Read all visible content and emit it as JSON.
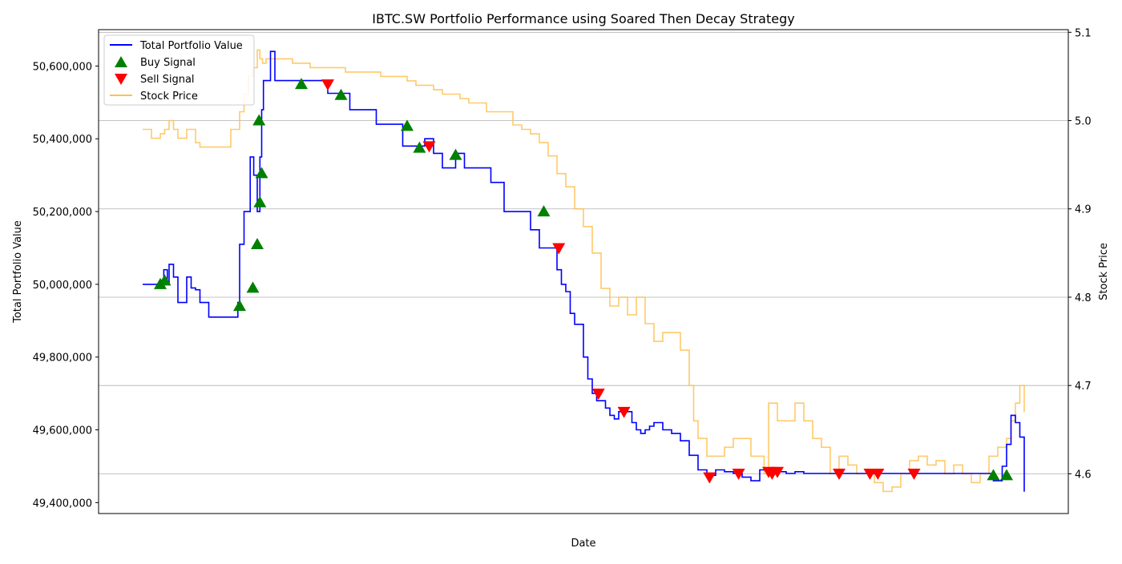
{
  "chart_data": {
    "type": "line",
    "title": "IBTC.SW Portfolio Performance using Soared Then Decay Strategy",
    "xlabel": "Date",
    "ylabel_left": "Total Portfolio Value",
    "ylabel_right": "Stock Price",
    "ylim_left": [
      49370000,
      50700000
    ],
    "ylim_right": [
      4.555,
      5.103
    ],
    "xlim": [
      -0.05,
      1.05
    ],
    "left_ticks": [
      49400000,
      49600000,
      49800000,
      50000000,
      50200000,
      50400000,
      50600000
    ],
    "left_tick_labels": [
      "49,400,000",
      "49,600,000",
      "49,800,000",
      "50,000,000",
      "50,200,000",
      "50,400,000",
      "50,600,000"
    ],
    "right_ticks": [
      4.6,
      4.7,
      4.8,
      4.9,
      5.0,
      5.1
    ],
    "right_tick_labels": [
      "4.6",
      "4.7",
      "4.8",
      "4.9",
      "5.0",
      "5.1"
    ],
    "grid": "horizontal",
    "legend_position": "top-left",
    "colors": {
      "portfolio": "#0000ff",
      "buy": "#008000",
      "sell": "#ff0000",
      "stock": "#ffbf50"
    },
    "series": [
      {
        "name": "Total Portfolio Value",
        "axis": "left",
        "x": [
          0.0,
          0.02,
          0.024,
          0.028,
          0.03,
          0.035,
          0.04,
          0.045,
          0.05,
          0.055,
          0.06,
          0.065,
          0.07,
          0.075,
          0.08,
          0.085,
          0.09,
          0.1,
          0.108,
          0.11,
          0.115,
          0.122,
          0.126,
          0.13,
          0.133,
          0.135,
          0.137,
          0.14,
          0.145,
          0.15,
          0.155,
          0.165,
          0.18,
          0.195,
          0.205,
          0.21,
          0.22,
          0.235,
          0.245,
          0.255,
          0.265,
          0.275,
          0.285,
          0.295,
          0.3,
          0.31,
          0.32,
          0.33,
          0.34,
          0.345,
          0.355,
          0.365,
          0.375,
          0.385,
          0.395,
          0.41,
          0.425,
          0.44,
          0.45,
          0.46,
          0.47,
          0.475,
          0.48,
          0.485,
          0.49,
          0.495,
          0.5,
          0.505,
          0.51,
          0.515,
          0.52,
          0.525,
          0.53,
          0.535,
          0.54,
          0.545,
          0.55,
          0.555,
          0.56,
          0.565,
          0.57,
          0.575,
          0.58,
          0.59,
          0.6,
          0.61,
          0.62,
          0.63,
          0.64,
          0.645,
          0.65,
          0.66,
          0.67,
          0.68,
          0.69,
          0.7,
          0.71,
          0.72,
          0.73,
          0.74,
          0.75,
          0.76,
          0.77,
          0.8,
          0.82,
          0.85,
          0.88,
          0.9,
          0.92,
          0.94,
          0.96,
          0.965,
          0.97,
          0.975,
          0.98,
          0.985,
          0.99,
          0.995,
          1.0
        ],
        "values": [
          50000000,
          50000000,
          50040000,
          50000000,
          50055000,
          50020000,
          49950000,
          49950000,
          50020000,
          49990000,
          49985000,
          49950000,
          49950000,
          49910000,
          49910000,
          49910000,
          49910000,
          49910000,
          49950000,
          50110000,
          50200000,
          50350000,
          50300000,
          50200000,
          50350000,
          50480000,
          50560000,
          50560000,
          50640000,
          50560000,
          50560000,
          50560000,
          50560000,
          50560000,
          50560000,
          50525000,
          50525000,
          50480000,
          50480000,
          50480000,
          50440000,
          50440000,
          50440000,
          50380000,
          50380000,
          50380000,
          50400000,
          50360000,
          50320000,
          50320000,
          50360000,
          50320000,
          50320000,
          50320000,
          50280000,
          50200000,
          50200000,
          50150000,
          50100000,
          50100000,
          50040000,
          50000000,
          49980000,
          49920000,
          49890000,
          49890000,
          49800000,
          49740000,
          49700000,
          49680000,
          49680000,
          49660000,
          49640000,
          49630000,
          49650000,
          49660000,
          49650000,
          49620000,
          49600000,
          49590000,
          49600000,
          49610000,
          49620000,
          49600000,
          49590000,
          49570000,
          49530000,
          49490000,
          49480000,
          49475000,
          49490000,
          49485000,
          49480000,
          49470000,
          49460000,
          49490000,
          49490000,
          49485000,
          49480000,
          49485000,
          49480000,
          49480000,
          49480000,
          49480000,
          49480000,
          49480000,
          49480000,
          49480000,
          49480000,
          49480000,
          49480000,
          49460000,
          49460000,
          49500000,
          49560000,
          49640000,
          49620000,
          49580000,
          49430000
        ]
      },
      {
        "name": "Stock Price",
        "axis": "right",
        "x": [
          0.0,
          0.01,
          0.02,
          0.025,
          0.03,
          0.035,
          0.04,
          0.05,
          0.06,
          0.065,
          0.07,
          0.075,
          0.08,
          0.09,
          0.1,
          0.11,
          0.115,
          0.12,
          0.125,
          0.13,
          0.133,
          0.136,
          0.14,
          0.145,
          0.15,
          0.16,
          0.17,
          0.18,
          0.19,
          0.2,
          0.21,
          0.22,
          0.23,
          0.25,
          0.27,
          0.29,
          0.3,
          0.31,
          0.32,
          0.33,
          0.34,
          0.35,
          0.36,
          0.37,
          0.38,
          0.39,
          0.4,
          0.41,
          0.42,
          0.43,
          0.44,
          0.45,
          0.46,
          0.47,
          0.48,
          0.49,
          0.5,
          0.51,
          0.52,
          0.53,
          0.54,
          0.55,
          0.56,
          0.57,
          0.58,
          0.59,
          0.6,
          0.61,
          0.62,
          0.625,
          0.63,
          0.64,
          0.65,
          0.66,
          0.67,
          0.68,
          0.69,
          0.7,
          0.705,
          0.71,
          0.72,
          0.73,
          0.74,
          0.75,
          0.76,
          0.77,
          0.78,
          0.79,
          0.8,
          0.81,
          0.82,
          0.83,
          0.84,
          0.85,
          0.86,
          0.87,
          0.88,
          0.89,
          0.9,
          0.91,
          0.92,
          0.93,
          0.94,
          0.95,
          0.96,
          0.97,
          0.98,
          0.985,
          0.99,
          0.995,
          1.0
        ],
        "values": [
          4.99,
          4.98,
          4.985,
          4.99,
          5.0,
          4.99,
          4.98,
          4.99,
          4.975,
          4.97,
          4.97,
          4.97,
          4.97,
          4.97,
          4.99,
          5.01,
          5.03,
          5.05,
          5.06,
          5.08,
          5.07,
          5.065,
          5.07,
          5.07,
          5.07,
          5.07,
          5.065,
          5.065,
          5.06,
          5.06,
          5.06,
          5.06,
          5.055,
          5.055,
          5.05,
          5.05,
          5.045,
          5.04,
          5.04,
          5.035,
          5.03,
          5.03,
          5.025,
          5.02,
          5.02,
          5.01,
          5.01,
          5.01,
          4.995,
          4.99,
          4.985,
          4.975,
          4.96,
          4.94,
          4.925,
          4.9,
          4.88,
          4.85,
          4.81,
          4.79,
          4.8,
          4.78,
          4.8,
          4.77,
          4.75,
          4.76,
          4.76,
          4.74,
          4.7,
          4.66,
          4.64,
          4.62,
          4.62,
          4.63,
          4.64,
          4.64,
          4.62,
          4.62,
          4.6,
          4.68,
          4.66,
          4.66,
          4.68,
          4.66,
          4.64,
          4.63,
          4.6,
          4.62,
          4.61,
          4.6,
          4.6,
          4.59,
          4.58,
          4.585,
          4.6,
          4.615,
          4.62,
          4.61,
          4.615,
          4.6,
          4.61,
          4.6,
          4.59,
          4.6,
          4.62,
          4.63,
          4.64,
          4.66,
          4.68,
          4.7,
          4.67
        ]
      }
    ],
    "buy_signals": {
      "name": "Buy Signal",
      "x": [
        0.02,
        0.025,
        0.11,
        0.125,
        0.13,
        0.132,
        0.133,
        0.135,
        0.18,
        0.225,
        0.3,
        0.314,
        0.355,
        0.455,
        0.965,
        0.98
      ],
      "values": [
        50000000,
        50010000,
        49940000,
        49990000,
        50110000,
        50450000,
        50225000,
        50305000,
        50550000,
        50520000,
        50435000,
        50375000,
        50355000,
        50200000,
        49475000,
        49475000
      ]
    },
    "sell_signals": {
      "name": "Sell Signal",
      "x": [
        0.21,
        0.325,
        0.472,
        0.517,
        0.546,
        0.643,
        0.676,
        0.71,
        0.714,
        0.72,
        0.79,
        0.825,
        0.834,
        0.875
      ],
      "values": [
        50550000,
        50380000,
        50100000,
        49700000,
        49650000,
        49470000,
        49480000,
        49485000,
        49480000,
        49485000,
        49480000,
        49480000,
        49480000,
        49480000
      ]
    }
  }
}
